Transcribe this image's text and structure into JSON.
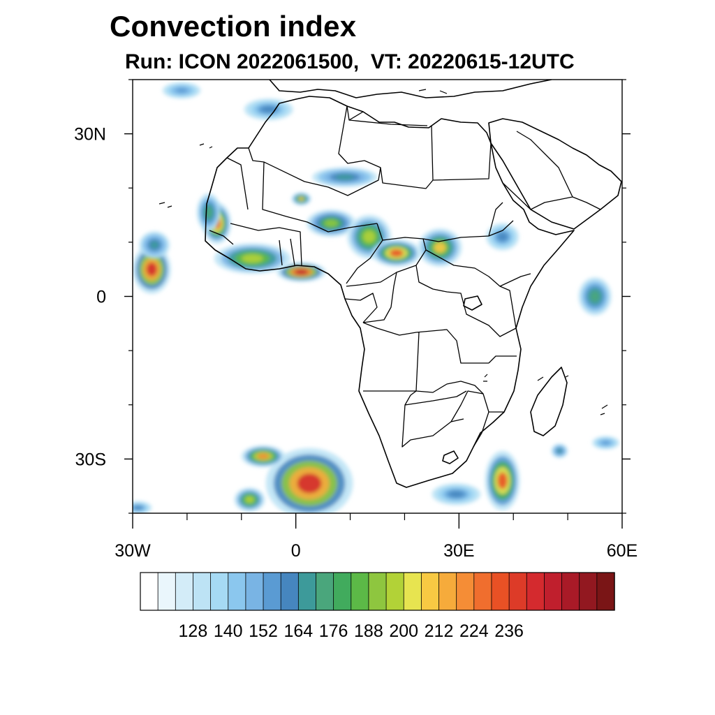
{
  "title": "Convection index",
  "subtitle": "Run: ICON 2022061500,  VT: 20220615-12UTC",
  "map": {
    "region": "Africa",
    "lon_range": [
      -30,
      60
    ],
    "lat_range": [
      -40,
      40
    ],
    "lat_labels": [
      {
        "value": 30,
        "text": "30N"
      },
      {
        "value": 0,
        "text": "0"
      },
      {
        "value": -30,
        "text": "30S"
      }
    ],
    "lon_labels": [
      {
        "value": -30,
        "text": "30W"
      },
      {
        "value": 0,
        "text": "0"
      },
      {
        "value": 30,
        "text": "30E"
      },
      {
        "value": 60,
        "text": "60E"
      }
    ],
    "minor_lat_ticks": [
      40,
      20,
      10,
      -10,
      -20,
      -40
    ],
    "minor_lon_ticks": [
      -20,
      -10,
      10,
      20,
      40,
      50
    ],
    "convection_cells": [
      {
        "lon": -26.5,
        "lat": 5.0,
        "rlon": 3.5,
        "rlat": 4.5,
        "level": 0.85
      },
      {
        "lon": -26.0,
        "lat": 9.5,
        "rlon": 2.8,
        "rlat": 2.5,
        "level": 0.35
      },
      {
        "lon": 1.0,
        "lat": 4.5,
        "rlon": 4.5,
        "rlat": 1.8,
        "level": 0.9
      },
      {
        "lon": -8.0,
        "lat": 7.0,
        "rlon": 7.0,
        "rlat": 2.8,
        "level": 0.55
      },
      {
        "lon": -14.5,
        "lat": 13.5,
        "rlon": 2.6,
        "rlat": 3.8,
        "level": 0.75
      },
      {
        "lon": -16.0,
        "lat": 15.5,
        "rlon": 2.2,
        "rlat": 3.5,
        "level": 0.4
      },
      {
        "lon": 6.5,
        "lat": 13.5,
        "rlon": 4.5,
        "rlat": 2.5,
        "level": 0.5
      },
      {
        "lon": 13.5,
        "lat": 11.0,
        "rlon": 4.0,
        "rlat": 4.0,
        "level": 0.55
      },
      {
        "lon": 18.5,
        "lat": 8.0,
        "rlon": 4.5,
        "rlat": 2.5,
        "level": 0.75
      },
      {
        "lon": 26.5,
        "lat": 9.0,
        "rlon": 4.0,
        "rlat": 3.5,
        "level": 0.6
      },
      {
        "lon": 9.0,
        "lat": 22.0,
        "rlon": 6.0,
        "rlat": 1.8,
        "level": 0.35
      },
      {
        "lon": 1.0,
        "lat": 18.0,
        "rlon": 1.8,
        "rlat": 1.2,
        "level": 0.6
      },
      {
        "lon": -5.0,
        "lat": 34.5,
        "rlon": 4.5,
        "rlat": 2.0,
        "level": 0.3
      },
      {
        "lon": -21.0,
        "lat": 38.0,
        "rlon": 3.5,
        "rlat": 1.5,
        "level": 0.25
      },
      {
        "lon": 38.0,
        "lat": 11.0,
        "rlon": 3.0,
        "rlat": 2.5,
        "level": 0.3
      },
      {
        "lon": 55.0,
        "lat": 0.0,
        "rlon": 3.0,
        "rlat": 3.5,
        "level": 0.4
      },
      {
        "lon": 2.5,
        "lat": -34.5,
        "rlon": 8.0,
        "rlat": 6.5,
        "level": 0.85
      },
      {
        "lon": -6.0,
        "lat": -29.5,
        "rlon": 4.0,
        "rlat": 2.0,
        "level": 0.7
      },
      {
        "lon": -8.5,
        "lat": -37.5,
        "rlon": 2.8,
        "rlat": 2.2,
        "level": 0.55
      },
      {
        "lon": 38.0,
        "lat": -34.0,
        "rlon": 3.2,
        "rlat": 5.5,
        "level": 0.75
      },
      {
        "lon": 29.5,
        "lat": -36.5,
        "rlon": 4.5,
        "rlat": 2.0,
        "level": 0.3
      },
      {
        "lon": 48.5,
        "lat": -28.5,
        "rlon": 1.5,
        "rlat": 1.3,
        "level": 0.35
      },
      {
        "lon": 57.0,
        "lat": -27.0,
        "rlon": 2.5,
        "rlat": 1.2,
        "level": 0.25
      },
      {
        "lon": -29.0,
        "lat": -39.0,
        "rlon": 2.5,
        "rlat": 1.2,
        "level": 0.3
      }
    ]
  },
  "colorbar": {
    "colors": [
      "#ffffff",
      "#eaf6fc",
      "#d3ecf8",
      "#bde3f5",
      "#a6daf4",
      "#8bc7ee",
      "#79b4e4",
      "#5a9bd3",
      "#4686bf",
      "#3d9a9a",
      "#4aa67c",
      "#41ab5d",
      "#5cb947",
      "#8ec63f",
      "#b2d237",
      "#e7e450",
      "#f8c943",
      "#f6ab3b",
      "#f58d36",
      "#f06e2e",
      "#e95125",
      "#dd3b28",
      "#d42a2e",
      "#c01f2d",
      "#a91a27",
      "#921820",
      "#7a1516"
    ],
    "labels": [
      "128",
      "140",
      "152",
      "164",
      "176",
      "188",
      "200",
      "212",
      "224",
      "236"
    ]
  }
}
